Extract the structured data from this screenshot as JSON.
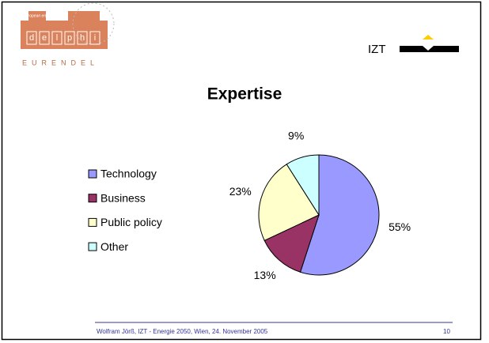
{
  "slide": {
    "logo_top": "european energy",
    "logo_letters": [
      "d",
      "e",
      "l",
      "p",
      "h",
      "i"
    ],
    "logo_bottom": "EURENDEL",
    "org": "IZT",
    "footer": "Wolfram Jörß, IZT  -  Energie 2050, Wien, 24. November 2005",
    "page": "10"
  },
  "chart_data": {
    "type": "pie",
    "title": "Expertise",
    "categories": [
      "Technology",
      "Business",
      "Public policy",
      "Other"
    ],
    "values": [
      55,
      13,
      23,
      9
    ],
    "value_labels": [
      "55%",
      "13%",
      "23%",
      "9%"
    ],
    "colors": [
      "#9999ff",
      "#993366",
      "#ffffcc",
      "#ccffff"
    ],
    "legend": "left"
  }
}
